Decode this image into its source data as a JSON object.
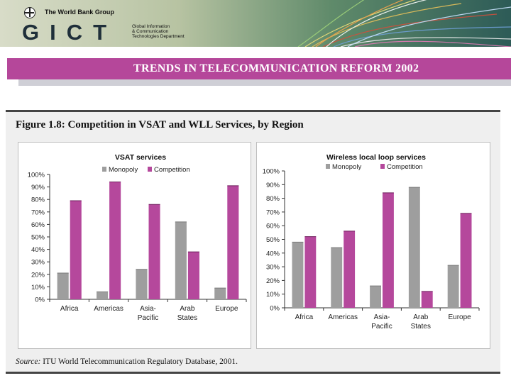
{
  "header": {
    "org": "The World Bank Group",
    "logo_text": "GICT",
    "sub_lines": [
      "Global Information",
      "& Communication",
      "Technologies Department"
    ]
  },
  "banner": {
    "title": "TRENDS IN TELECOMMUNICATION REFORM 2002"
  },
  "figure": {
    "title": "Figure 1.8:  Competition in VSAT and WLL Services, by Region",
    "source_label": "Source:",
    "source_text": " ITU World Telecommunication Regulatory Database, 2001."
  },
  "colors": {
    "monopoly": "#9e9e9e",
    "competition": "#b5489c",
    "banner": "#b5479a"
  },
  "chart_data": [
    {
      "type": "bar",
      "title": "VSAT services",
      "categories": [
        [
          "Africa"
        ],
        [
          "Americas"
        ],
        [
          "Asia-",
          "Pacific"
        ],
        [
          "Arab",
          "States"
        ],
        [
          "Europe"
        ]
      ],
      "series": [
        {
          "name": "Monopoly",
          "values": [
            21,
            6,
            24,
            62,
            9
          ]
        },
        {
          "name": "Competition",
          "values": [
            79,
            94,
            76,
            38,
            91
          ]
        }
      ],
      "yticks": [
        "0%",
        "10%",
        "20%",
        "30%",
        "40%",
        "50%",
        "60%",
        "70%",
        "80%",
        "90%",
        "100%"
      ],
      "ylim": [
        0,
        100
      ],
      "legend": "top"
    },
    {
      "type": "bar",
      "title": "Wireless local loop services",
      "categories": [
        [
          "Africa"
        ],
        [
          "Americas"
        ],
        [
          "Asia-",
          "Pacific"
        ],
        [
          "Arab",
          "States"
        ],
        [
          "Europe"
        ]
      ],
      "series": [
        {
          "name": "Monopoly",
          "values": [
            48,
            44,
            16,
            88,
            31
          ]
        },
        {
          "name": "Competition",
          "values": [
            52,
            56,
            84,
            12,
            69
          ]
        }
      ],
      "yticks": [
        "0%",
        "10%",
        "20%",
        "30%",
        "40%",
        "50%",
        "60%",
        "70%",
        "80%",
        "90%",
        "100%"
      ],
      "ylim": [
        0,
        100
      ],
      "legend": "top"
    }
  ]
}
